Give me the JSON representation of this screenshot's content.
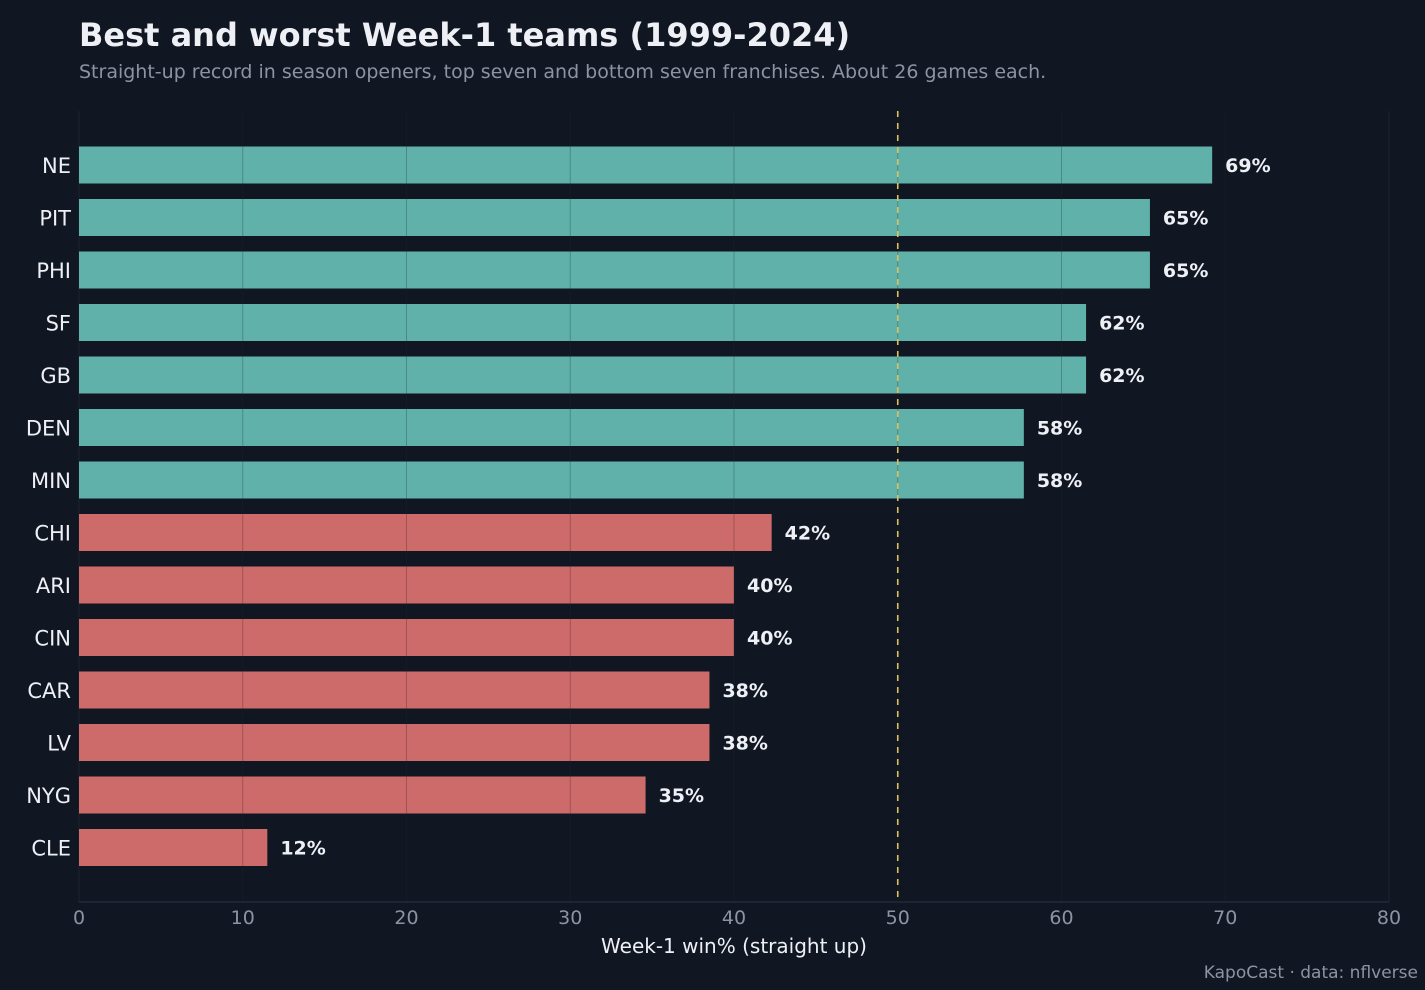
{
  "header": {
    "title": "Best and worst Week-1 teams (1999-2024)",
    "subtitle": "Straight-up record in season openers, top seven and bottom seven franchises. About 26 games each."
  },
  "footer": {
    "source": "KapoCast · data: nflverse"
  },
  "colors": {
    "background": "#111722",
    "top_bar": "#5fb1aa",
    "bottom_bar": "#cd6b6a",
    "reference_line": "#e0c05a",
    "text": "#eef0f6",
    "muted_text": "#8b94a2"
  },
  "chart_data": {
    "type": "bar",
    "orientation": "horizontal",
    "categories": [
      "NE",
      "PIT",
      "PHI",
      "SF",
      "GB",
      "DEN",
      "MIN",
      "CHI",
      "ARI",
      "CIN",
      "CAR",
      "LV",
      "NYG",
      "CLE"
    ],
    "values": [
      69.2,
      65.4,
      65.4,
      61.5,
      61.5,
      57.7,
      57.7,
      42.3,
      40.0,
      40.0,
      38.5,
      38.5,
      34.6,
      11.5
    ],
    "value_labels": [
      "69%",
      "65%",
      "65%",
      "62%",
      "62%",
      "58%",
      "58%",
      "42%",
      "40%",
      "40%",
      "38%",
      "38%",
      "35%",
      "12%"
    ],
    "groups": [
      "top",
      "top",
      "top",
      "top",
      "top",
      "top",
      "top",
      "bottom",
      "bottom",
      "bottom",
      "bottom",
      "bottom",
      "bottom",
      "bottom"
    ],
    "xlabel": "Week-1 win% (straight up)",
    "ylabel": "",
    "xlim": [
      0,
      80
    ],
    "xticks": [
      0,
      10,
      20,
      30,
      40,
      50,
      60,
      70,
      80
    ],
    "reference_line": 50,
    "grid": true
  }
}
